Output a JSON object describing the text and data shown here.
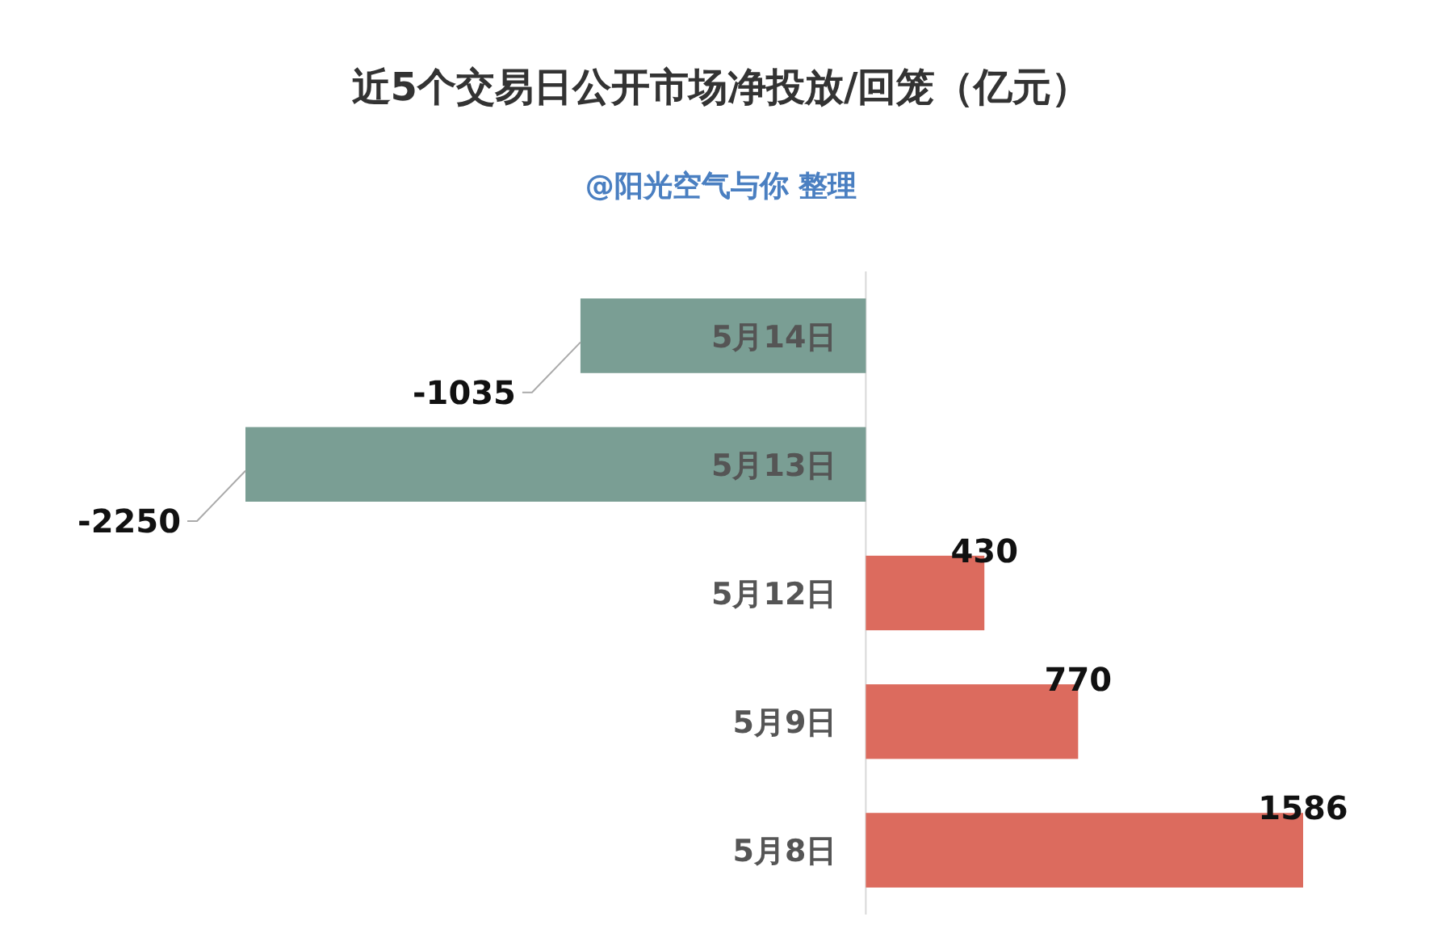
{
  "chart_data": {
    "type": "bar",
    "orientation": "horizontal",
    "title": "近5个交易日公开市场净投放/回笼（亿元）",
    "subtitle": "@阳光空气与你 整理",
    "categories": [
      "5月14日",
      "5月13日",
      "5月12日",
      "5月9日",
      "5月8日"
    ],
    "values": [
      -1035,
      -2250,
      430,
      770,
      1586
    ],
    "colors": [
      "#7a9e94",
      "#7a9e94",
      "#dc6b5e",
      "#dc6b5e",
      "#dc6b5e"
    ],
    "data_labels": true
  }
}
